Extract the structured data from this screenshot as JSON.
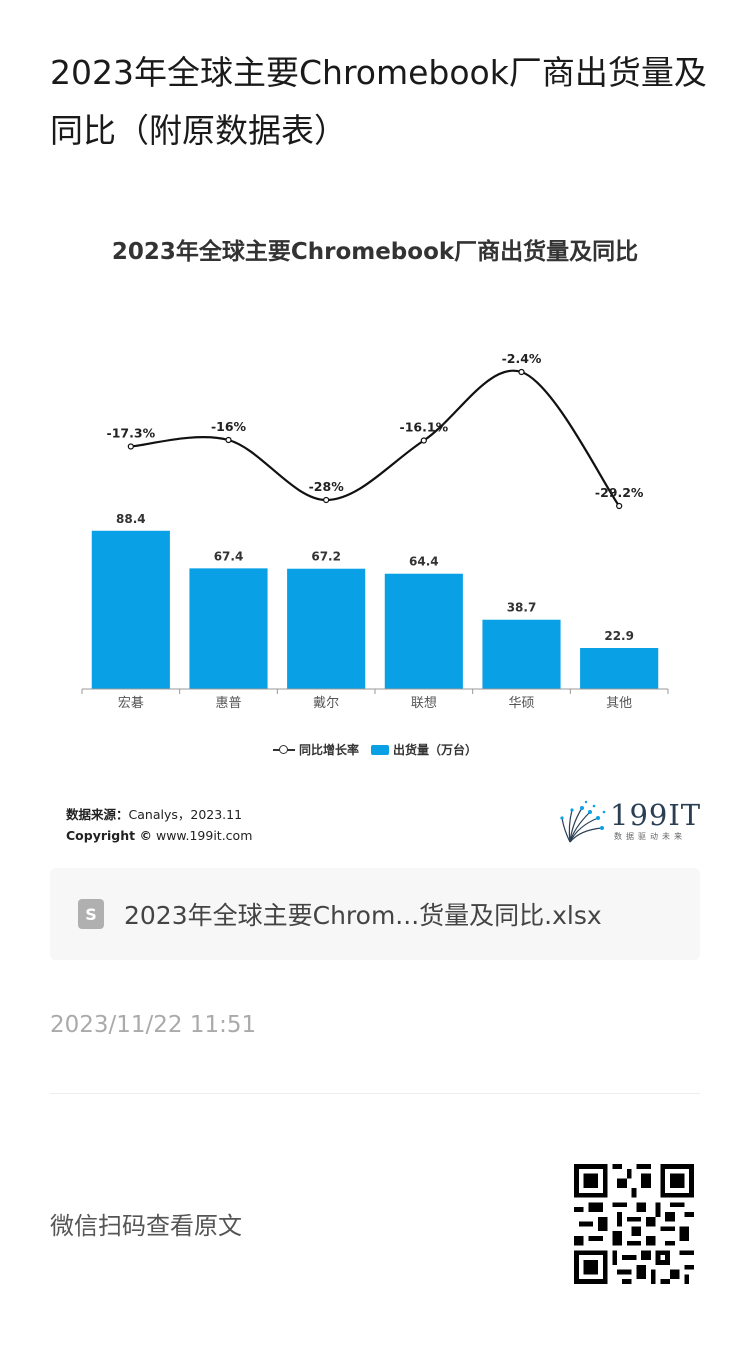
{
  "article": {
    "title": "2023年全球主要Chromebook厂商出货量及同比（附原数据表）"
  },
  "chart_data": {
    "type": "bar",
    "title": "2023年全球主要Chromebook厂商出货量及同比",
    "categories": [
      "宏碁",
      "惠普",
      "戴尔",
      "联想",
      "华硕",
      "其他"
    ],
    "series": [
      {
        "name": "出货量（万台）",
        "type": "bar",
        "values": [
          88.4,
          67.4,
          67.2,
          64.4,
          38.7,
          22.9
        ],
        "labels": [
          "88.4",
          "67.4",
          "67.2",
          "64.4",
          "38.7",
          "22.9"
        ],
        "color": "#0aa0e6"
      },
      {
        "name": "同比增长率",
        "type": "line",
        "values": [
          -17.3,
          -16,
          -28,
          -16.1,
          -2.4,
          -29.2
        ],
        "labels": [
          "-17.3%",
          "-16%",
          "-28%",
          "-16.1%",
          "-2.4%",
          "-29.2%"
        ],
        "color": "#111111"
      }
    ],
    "legend_position": "bottom",
    "grid": false,
    "bar_ylim": [
      0,
      100
    ],
    "line_ylim": [
      -34,
      0
    ]
  },
  "source": {
    "label": "数据来源：",
    "value": "Canalys，2023.11",
    "copyright_label": "Copyright ©",
    "copyright_value": "www.199it.com"
  },
  "logo": {
    "text": "199IT",
    "sub": "数据驱动未来"
  },
  "attachment": {
    "icon": "spreadsheet-file-icon",
    "icon_letter": "S",
    "name": "2023年全球主要Chrom...货量及同比.xlsx"
  },
  "timestamp": "2023/11/22 11:51",
  "footer": {
    "qr_hint": "微信扫码查看原文"
  }
}
